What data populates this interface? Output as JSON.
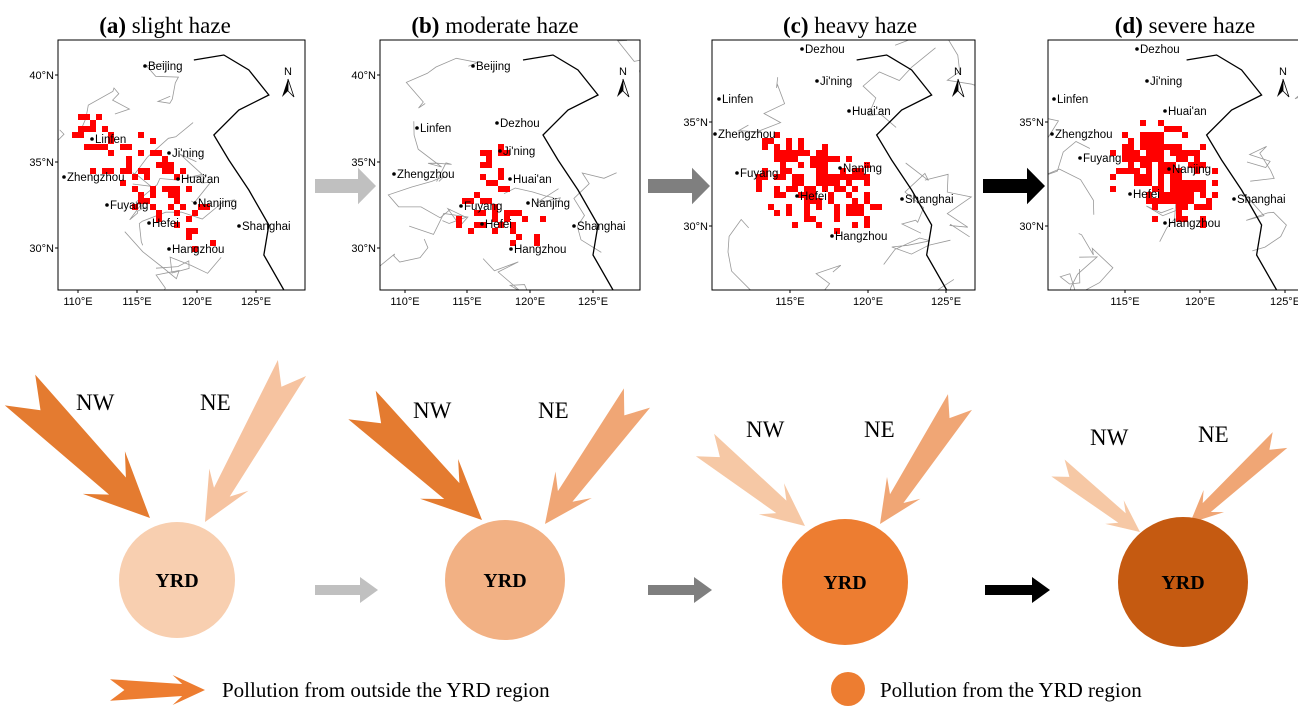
{
  "panels": [
    {
      "label": "(a)",
      "title": "slight haze",
      "north": "N",
      "lat_ticks": [
        "40°N",
        "35°N",
        "30°N"
      ],
      "lon_ticks": [
        "110°E",
        "115°E",
        "120°E",
        "125°E"
      ],
      "cities": [
        "Beijing",
        "Linfen",
        "Ji'ning",
        "Zhengzhou",
        "Huai'an",
        "Fuyang",
        "Nanjing",
        "Hefei",
        "Shanghai",
        "Hangzhou"
      ]
    },
    {
      "label": "(b)",
      "title": "moderate haze",
      "north": "N",
      "lat_ticks": [
        "40°N",
        "35°N",
        "30°N"
      ],
      "lon_ticks": [
        "110°E",
        "115°E",
        "120°E",
        "125°E"
      ],
      "cities": [
        "Beijing",
        "Linfen",
        "Dezhou",
        "Ji'ning",
        "Zhengzhou",
        "Huai'an",
        "Fuyang",
        "Nanjing",
        "Hefei",
        "Shanghai",
        "Hangzhou"
      ]
    },
    {
      "label": "(c)",
      "title": "heavy haze",
      "north": "N",
      "lat_ticks": [
        "35°N",
        "30°N"
      ],
      "lon_ticks": [
        "115°E",
        "120°E",
        "125°E"
      ],
      "cities": [
        "Dezhou",
        "Linfen",
        "Ji'ning",
        "Zhengzhou",
        "Huai'an",
        "Fuyang",
        "Nanjing",
        "Hefei",
        "Shanghai",
        "Hangzhou"
      ]
    },
    {
      "label": "(d)",
      "title": "severe haze",
      "north": "N",
      "lat_ticks": [
        "35°N",
        "30°N"
      ],
      "lon_ticks": [
        "115°E",
        "120°E",
        "125°E"
      ],
      "cities": [
        "Dezhou",
        "Linfen",
        "Ji'ning",
        "Zhengzhou",
        "Huai'an",
        "Fuyang",
        "Nanjing",
        "Hefei",
        "Shanghai",
        "Hangzhou"
      ]
    }
  ],
  "schematic": {
    "stages": [
      {
        "nw": "NW",
        "ne": "NE",
        "center": "YRD"
      },
      {
        "nw": "NW",
        "ne": "NE",
        "center": "YRD"
      },
      {
        "nw": "NW",
        "ne": "NE",
        "center": "YRD"
      },
      {
        "nw": "NW",
        "ne": "NE",
        "center": "YRD"
      }
    ]
  },
  "legend": {
    "outside": "Pollution from outside the YRD region",
    "inside": "Pollution from the YRD region"
  }
}
